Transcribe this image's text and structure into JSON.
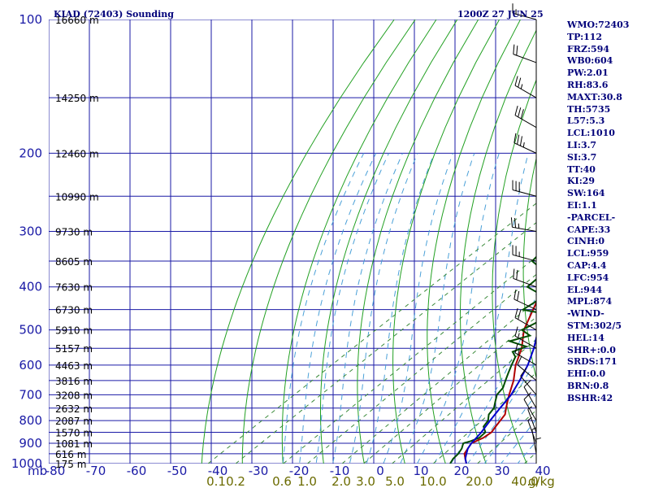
{
  "header": {
    "station": "KIAD (72403) Sounding",
    "time": "1200Z 27 JUN 25"
  },
  "stats": [
    "WMO:72403",
    "TP:112",
    "FRZ:594",
    "WB0:604",
    "PW:2.01",
    "RH:83.6",
    "MAXT:30.8",
    "TH:5735",
    "L57:5.3",
    "LCL:1010",
    "LI:3.7",
    "SI:3.7",
    "TT:40",
    "KI:29",
    "SW:164",
    "EI:1.1",
    "-PARCEL-",
    "CAPE:33",
    "CINH:0",
    "LCL:959",
    "CAP:4.4",
    "LFC:954",
    "EL:944",
    "MPL:874",
    "-WIND-",
    "STM:302/5",
    "HEL:14",
    "SHR+:0.0",
    "SRDS:171",
    "EHI:0.0",
    "BRN:0.8",
    "BSHR:42"
  ],
  "colors": {
    "grid": "#1a1aa6",
    "dry_adiabat": "#22a022",
    "temperature": "#b00000",
    "dewpoint": "#004d00",
    "parcel": "#0000cc",
    "mixing_ratio": "#3a8a3a",
    "moist_adiabat": "#4aa0d8",
    "wind": "#000000"
  },
  "chart_data": {
    "type": "line",
    "title": "KIAD (72403) Sounding",
    "xlabel": "",
    "ylabel": "mb",
    "y_scale": "log-pressure (inverted)",
    "ylim": [
      1000,
      100
    ],
    "xlim": [
      -80,
      40
    ],
    "pressure_ticks": [
      "100",
      "200",
      "300",
      "400",
      "500",
      "600",
      "700",
      "800",
      "900",
      "1000"
    ],
    "temp_ticks": [
      "-80",
      "-70",
      "-60",
      "-50",
      "-40",
      "-30",
      "-20",
      "-10",
      "0",
      "10",
      "20",
      "30",
      "40"
    ],
    "mixing_ratio_ticks": [
      "0.1",
      "0.2",
      "0.6",
      "1.0",
      "2.0",
      "3.0",
      "5.0",
      "10.0",
      "20.0",
      "40.0"
    ],
    "mixing_ratio_unit": "g/kg",
    "height_labels": [
      {
        "p": 100,
        "label": "16660 m"
      },
      {
        "p": 150,
        "label": "14250 m"
      },
      {
        "p": 200,
        "label": "12460 m"
      },
      {
        "p": 250,
        "label": "10990 m"
      },
      {
        "p": 300,
        "label": "9730 m"
      },
      {
        "p": 350,
        "label": "8605 m"
      },
      {
        "p": 400,
        "label": "7630 m"
      },
      {
        "p": 450,
        "label": "6730 m"
      },
      {
        "p": 500,
        "label": "5910 m"
      },
      {
        "p": 550,
        "label": "5157 m"
      },
      {
        "p": 600,
        "label": "4463 m"
      },
      {
        "p": 650,
        "label": "3816 m"
      },
      {
        "p": 700,
        "label": "3208 m"
      },
      {
        "p": 750,
        "label": "2632 m"
      },
      {
        "p": 800,
        "label": "2087 m"
      },
      {
        "p": 850,
        "label": "1570 m"
      },
      {
        "p": 900,
        "label": "1081 m"
      },
      {
        "p": 950,
        "label": "616 m"
      },
      {
        "p": 1000,
        "label": "175 m"
      }
    ],
    "series": [
      {
        "key": "temperature",
        "values": [
          [
            1000,
            22
          ],
          [
            975,
            20
          ],
          [
            950,
            18
          ],
          [
            925,
            17
          ],
          [
            900,
            16
          ],
          [
            875,
            17
          ],
          [
            850,
            17
          ],
          [
            825,
            16
          ],
          [
            800,
            15
          ],
          [
            775,
            14
          ],
          [
            750,
            12
          ],
          [
            725,
            10
          ],
          [
            700,
            8
          ],
          [
            650,
            4
          ],
          [
            600,
            -1
          ],
          [
            550,
            -5.5
          ],
          [
            500,
            -11.5
          ],
          [
            450,
            -16.5
          ],
          [
            400,
            -22
          ],
          [
            350,
            -29
          ],
          [
            300,
            -37
          ],
          [
            250,
            -46
          ],
          [
            200,
            -55
          ],
          [
            170,
            -62
          ],
          [
            150,
            -67
          ],
          [
            125,
            -72
          ],
          [
            105,
            -78
          ],
          [
            100,
            -75
          ]
        ]
      },
      {
        "key": "dewpoint",
        "values": [
          [
            1000,
            18
          ],
          [
            975,
            17
          ],
          [
            950,
            16.5
          ],
          [
            925,
            15.5
          ],
          [
            900,
            14
          ],
          [
            890,
            15
          ],
          [
            875,
            16
          ],
          [
            850,
            15.5
          ],
          [
            825,
            13
          ],
          [
            800,
            12
          ],
          [
            775,
            10
          ],
          [
            750,
            9
          ],
          [
            725,
            7
          ],
          [
            700,
            5
          ],
          [
            675,
            4
          ],
          [
            650,
            2
          ],
          [
            625,
            0
          ],
          [
            600,
            -2
          ],
          [
            575,
            -4
          ],
          [
            560,
            -6.5
          ],
          [
            545,
            -5
          ],
          [
            530,
            -11
          ],
          [
            515,
            -8
          ],
          [
            500,
            -12
          ],
          [
            480,
            -11
          ],
          [
            460,
            -12
          ],
          [
            450,
            -19
          ],
          [
            420,
            -18.5
          ],
          [
            400,
            -26
          ],
          [
            370,
            -27
          ],
          [
            350,
            -34
          ],
          [
            320,
            -36
          ],
          [
            300,
            -41
          ],
          [
            250,
            -49
          ],
          [
            200,
            -57.5
          ],
          [
            180,
            -61
          ],
          [
            160,
            -66
          ],
          [
            140,
            -73
          ],
          [
            120,
            -80
          ]
        ]
      },
      {
        "key": "parcel",
        "values": [
          [
            1000,
            22
          ],
          [
            975,
            20
          ],
          [
            950,
            18.5
          ],
          [
            925,
            17
          ],
          [
            900,
            16
          ],
          [
            850,
            14.5
          ],
          [
            800,
            12.5
          ],
          [
            750,
            10.5
          ],
          [
            700,
            8.5
          ],
          [
            650,
            5.5
          ],
          [
            600,
            2
          ],
          [
            550,
            -2.5
          ],
          [
            500,
            -8
          ],
          [
            450,
            -14.5
          ],
          [
            400,
            -21.5
          ],
          [
            350,
            -29.5
          ],
          [
            300,
            -38
          ],
          [
            250,
            -48
          ],
          [
            200,
            -59
          ],
          [
            170,
            -66
          ],
          [
            150,
            -72
          ]
        ]
      }
    ],
    "wind_barbs": [
      {
        "p": 100,
        "dir": 285,
        "spd": 15
      },
      {
        "p": 125,
        "dir": 290,
        "spd": 20
      },
      {
        "p": 150,
        "dir": 300,
        "spd": 25
      },
      {
        "p": 175,
        "dir": 300,
        "spd": 30
      },
      {
        "p": 200,
        "dir": 295,
        "spd": 35
      },
      {
        "p": 250,
        "dir": 285,
        "spd": 30
      },
      {
        "p": 300,
        "dir": 280,
        "spd": 25
      },
      {
        "p": 350,
        "dir": 285,
        "spd": 25
      },
      {
        "p": 400,
        "dir": 290,
        "spd": 20
      },
      {
        "p": 450,
        "dir": 295,
        "spd": 20
      },
      {
        "p": 500,
        "dir": 300,
        "spd": 20
      },
      {
        "p": 550,
        "dir": 300,
        "spd": 15
      },
      {
        "p": 600,
        "dir": 300,
        "spd": 15
      },
      {
        "p": 650,
        "dir": 310,
        "spd": 10
      },
      {
        "p": 700,
        "dir": 320,
        "spd": 10
      },
      {
        "p": 750,
        "dir": 330,
        "spd": 10
      },
      {
        "p": 800,
        "dir": 330,
        "spd": 10
      },
      {
        "p": 850,
        "dir": 340,
        "spd": 5
      },
      {
        "p": 900,
        "dir": 340,
        "spd": 5
      },
      {
        "p": 950,
        "dir": 350,
        "spd": 5
      },
      {
        "p": 1000,
        "dir": 360,
        "spd": 5
      }
    ]
  }
}
